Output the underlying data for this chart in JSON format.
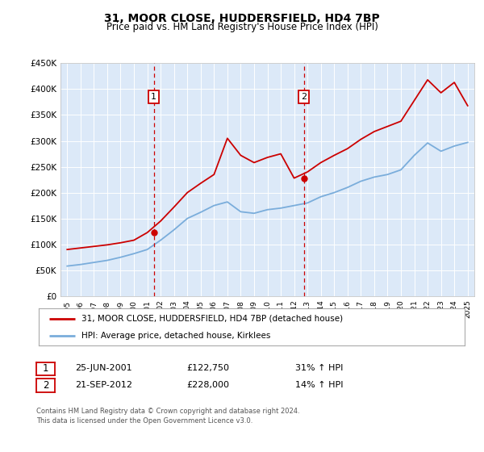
{
  "title": "31, MOOR CLOSE, HUDDERSFIELD, HD4 7BP",
  "subtitle": "Price paid vs. HM Land Registry's House Price Index (HPI)",
  "footer": "Contains HM Land Registry data © Crown copyright and database right 2024.\nThis data is licensed under the Open Government Licence v3.0.",
  "legend_line1": "31, MOOR CLOSE, HUDDERSFIELD, HD4 7BP (detached house)",
  "legend_line2": "HPI: Average price, detached house, Kirklees",
  "sale1_label": "1",
  "sale1_date": "25-JUN-2001",
  "sale1_price": "£122,750",
  "sale1_hpi": "31% ↑ HPI",
  "sale1_year": 2001.48,
  "sale1_value": 122750,
  "sale2_label": "2",
  "sale2_date": "21-SEP-2012",
  "sale2_price": "£228,000",
  "sale2_hpi": "14% ↑ HPI",
  "sale2_year": 2012.72,
  "sale2_value": 228000,
  "ylim": [
    0,
    450000
  ],
  "yticks": [
    0,
    50000,
    100000,
    150000,
    200000,
    250000,
    300000,
    350000,
    400000,
    450000
  ],
  "ytick_labels": [
    "£0",
    "£50K",
    "£100K",
    "£150K",
    "£200K",
    "£250K",
    "£300K",
    "£350K",
    "£400K",
    "£450K"
  ],
  "xlim_start": 1994.5,
  "xlim_end": 2025.5,
  "plot_bg_color": "#dce9f8",
  "red_color": "#cc0000",
  "blue_color": "#7aaddb",
  "hpi_years": [
    1995,
    1996,
    1997,
    1998,
    1999,
    2000,
    2001,
    2002,
    2003,
    2004,
    2005,
    2006,
    2007,
    2008,
    2009,
    2010,
    2011,
    2012,
    2013,
    2014,
    2015,
    2016,
    2017,
    2018,
    2019,
    2020,
    2021,
    2022,
    2023,
    2024,
    2025
  ],
  "property_values": [
    90000,
    93000,
    96000,
    99000,
    103000,
    108000,
    122750,
    145000,
    172000,
    200000,
    218000,
    235000,
    305000,
    272000,
    258000,
    268000,
    275000,
    228000,
    240000,
    258000,
    272000,
    285000,
    303000,
    318000,
    328000,
    338000,
    378000,
    418000,
    393000,
    413000,
    368000
  ],
  "blue_values": [
    58000,
    61000,
    65000,
    69000,
    75000,
    82000,
    90000,
    108000,
    128000,
    150000,
    162000,
    175000,
    182000,
    163000,
    160000,
    167000,
    170000,
    175000,
    180000,
    192000,
    200000,
    210000,
    222000,
    230000,
    235000,
    244000,
    272000,
    296000,
    280000,
    290000,
    297000
  ]
}
